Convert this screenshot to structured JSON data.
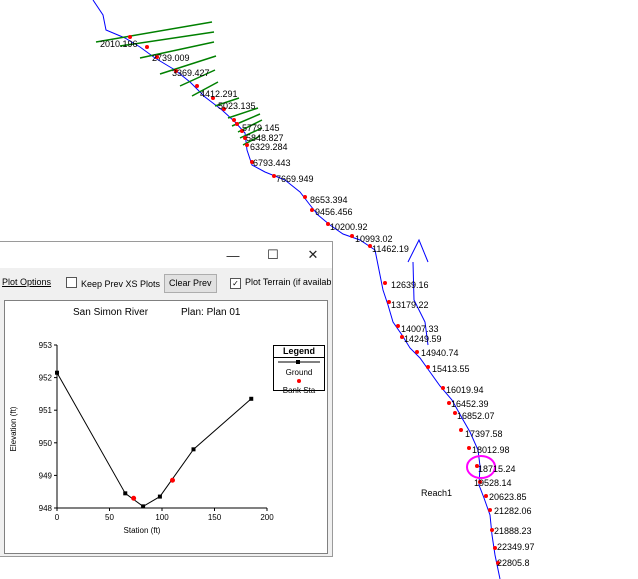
{
  "map": {
    "reach_label": "Reach1",
    "stations": [
      "2010.196",
      "2739.009",
      "3369.427",
      "4412.291",
      "5023.135",
      "5779.145",
      "5848.827",
      "6329.284",
      "6793.443",
      "7669.949",
      "8653.394",
      "9456.456",
      "10200.92",
      "10993.02",
      "11462.19",
      "12639.16",
      "13179.22",
      "14007.33",
      "14249.59",
      "14940.74",
      "15413.55",
      "16019.94",
      "16452.39",
      "16852.07",
      "17397.58",
      "18012.98",
      "18715.24",
      "19528.14",
      "20623.85",
      "21282.06",
      "21888.23",
      "22349.97",
      "22805.8"
    ],
    "colors": {
      "river": "#0000ff",
      "xs_line": "#008000",
      "bank": "#ff0000",
      "highlight": "#ff00ff"
    }
  },
  "window": {
    "minimize_icon": "minimize-icon",
    "maximize_icon": "maximize-icon",
    "close_icon": "close-icon",
    "minimize_glyph": "—",
    "maximize_glyph": "☐",
    "close_glyph": "✕",
    "toolbar": {
      "plot_options": "Plot Options",
      "keep_prev": "Keep Prev XS Plots",
      "clear_prev": "Clear Prev",
      "plot_terrain": "Plot Terrain (if availab",
      "plot_terrain_checked": true
    }
  },
  "chart_data": {
    "type": "line",
    "title": "San Simon River",
    "subtitle": "Plan: Plan 01",
    "xlabel": "Station (ft)",
    "ylabel": "Elevation (ft)",
    "xlim": [
      0,
      200
    ],
    "ylim": [
      948,
      953
    ],
    "x_ticks": [
      "0",
      "50",
      "100",
      "150",
      "200"
    ],
    "y_ticks": [
      "948",
      "949",
      "950",
      "951",
      "952",
      "953"
    ],
    "grid": false,
    "legend": {
      "title": "Legend",
      "placement": "right",
      "items": [
        "Ground",
        "Bank Sta"
      ]
    },
    "series": [
      {
        "name": "Ground",
        "color": "#000000",
        "x": [
          0,
          65,
          82,
          98,
          130,
          185
        ],
        "y": [
          952.15,
          948.45,
          948.05,
          948.35,
          949.8,
          951.35
        ]
      },
      {
        "name": "Bank Sta",
        "color": "#ff0000",
        "x": [
          73,
          110
        ],
        "y": [
          948.3,
          948.85
        ]
      }
    ]
  }
}
